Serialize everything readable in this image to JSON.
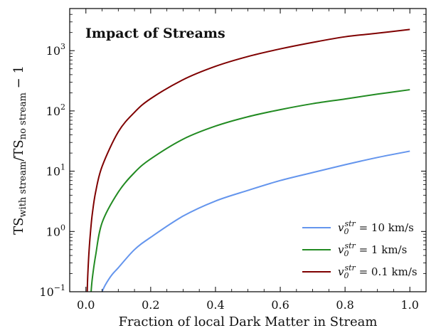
{
  "chart_data": {
    "type": "line",
    "title": "Impact of Streams",
    "xlabel": "Fraction of local Dark Matter in Stream",
    "ylabel": "TS_with stream / TS_no stream − 1",
    "ylabel_parts": {
      "main": "TS",
      "sub1": "with stream",
      "mid": "/TS",
      "sub2": "no stream",
      "tail": " − 1"
    },
    "xlim": [
      -0.05,
      1.05
    ],
    "ylim": [
      0.1,
      5000
    ],
    "yscale": "log",
    "xticks": [
      0.0,
      0.2,
      0.4,
      0.6,
      0.8,
      1.0
    ],
    "xtick_labels": [
      "0.0",
      "0.2",
      "0.4",
      "0.6",
      "0.8",
      "1.0"
    ],
    "yticks": [
      0.1,
      1,
      10,
      100,
      1000
    ],
    "ytick_labels": [
      {
        "base": "10",
        "exp": "−1"
      },
      {
        "base": "10",
        "exp": "0"
      },
      {
        "base": "10",
        "exp": "1"
      },
      {
        "base": "10",
        "exp": "2"
      },
      {
        "base": "10",
        "exp": "3"
      }
    ],
    "legend_position": "lower-right",
    "grid": false,
    "series": [
      {
        "name": "v0str = 10 km/s",
        "label": {
          "v": "v",
          "sub": "0",
          "sup": "str",
          "rest": " = 10 km/s"
        },
        "color": "#6495ed",
        "x": [
          0.05,
          0.06,
          0.08,
          0.1,
          0.15,
          0.2,
          0.3,
          0.4,
          0.5,
          0.6,
          0.7,
          0.8,
          0.9,
          1.0
        ],
        "y": [
          0.1,
          0.13,
          0.19,
          0.25,
          0.5,
          0.8,
          1.8,
          3.2,
          4.8,
          7.0,
          9.5,
          12.8,
          16.9,
          21.5
        ]
      },
      {
        "name": "v0str = 1 km/s",
        "label": {
          "v": "v",
          "sub": "0",
          "sup": "str",
          "rest": " = 1 km/s"
        },
        "color": "#228b22",
        "x": [
          0.016,
          0.02,
          0.03,
          0.05,
          0.1,
          0.15,
          0.2,
          0.3,
          0.4,
          0.5,
          0.6,
          0.7,
          0.8,
          0.9,
          1.0
        ],
        "y": [
          0.1,
          0.17,
          0.4,
          1.4,
          4.5,
          9.5,
          16,
          34,
          56,
          80,
          105,
          132,
          158,
          190,
          225
        ]
      },
      {
        "name": "v0str = 0.1 km/s",
        "label": {
          "v": "v",
          "sub": "0",
          "sup": "str",
          "rest": " = 0.1 km/s"
        },
        "color": "#7f0000",
        "x": [
          0.004,
          0.006,
          0.01,
          0.015,
          0.02,
          0.03,
          0.05,
          0.1,
          0.15,
          0.2,
          0.3,
          0.4,
          0.5,
          0.6,
          0.7,
          0.8,
          0.9,
          1.0
        ],
        "y": [
          0.1,
          0.2,
          0.5,
          1.1,
          2.0,
          4.5,
          12,
          45,
          95,
          160,
          330,
          550,
          800,
          1070,
          1370,
          1700,
          1950,
          2250
        ]
      }
    ]
  }
}
